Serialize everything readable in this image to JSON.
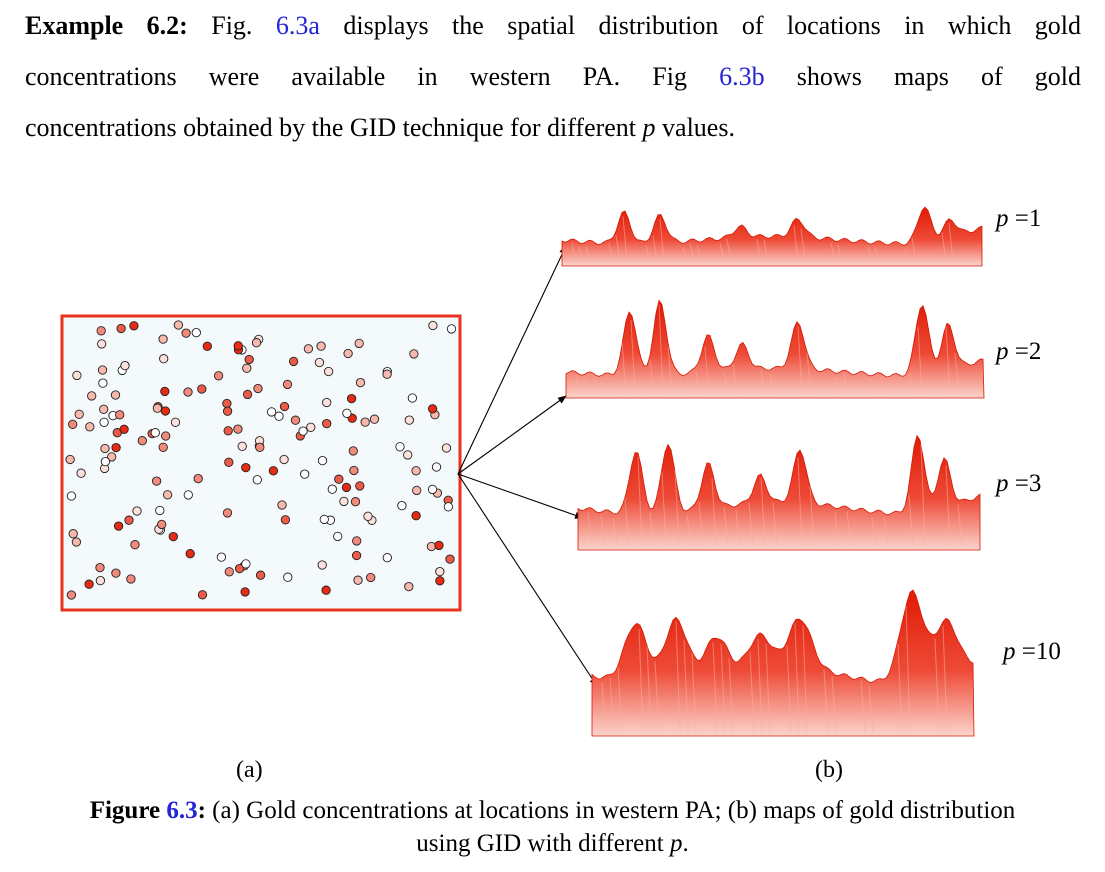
{
  "paragraph": {
    "lead": "Example 6.2:",
    "l1_a": "Fig.",
    "l1_ref": "6.3a",
    "l1_b": "displays the spatial distribution of locations in which gold",
    "l2_a": "concentrations were available in western PA.",
    "l2_b": "Fig",
    "l2_ref": "6.3b",
    "l2_c": "shows maps of gold",
    "l3_a": "concentrations obtained by the GID technique for different",
    "l3_p": "p",
    "l3_b": "values."
  },
  "figure": {
    "panel_a_label": "(a)",
    "panel_b_label": "(b)",
    "map_labels": [
      {
        "var": "p",
        "eq": " =1"
      },
      {
        "var": "p",
        "eq": " =2"
      },
      {
        "var": "p",
        "eq": " =3"
      },
      {
        "var": "p",
        "eq": " =10"
      }
    ],
    "colors": {
      "frame": "#e8321e",
      "surface": "#e8230d",
      "panel_bg": "#f4fafc"
    }
  },
  "caption": {
    "label": "Figure",
    "ref": "6.3",
    "colon": ":",
    "text1": " (a) Gold concentrations at locations in western PA; (b) maps of gold distribution",
    "text2": "using GID with different",
    "p": "p",
    "end": "."
  }
}
